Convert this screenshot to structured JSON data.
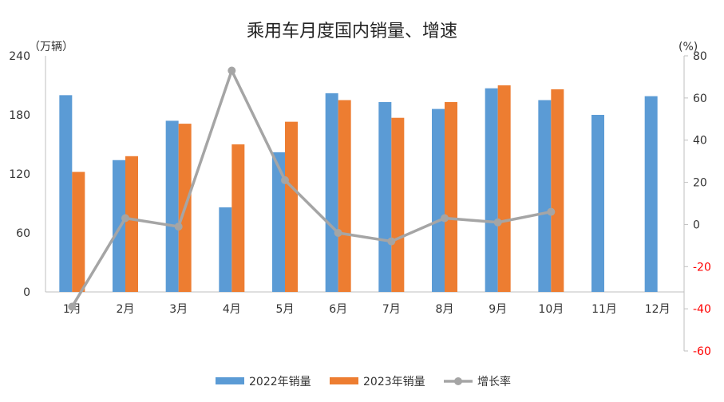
{
  "chart_data": {
    "type": "bar",
    "title": "乘用车月度国内销量、增速",
    "y_left_label": "（万辆）",
    "y_right_label": "(%)",
    "ylim_left": [
      0,
      240
    ],
    "yticks_left": [
      0,
      60,
      120,
      180,
      240
    ],
    "ylim_right": [
      -60,
      80
    ],
    "yticks_right": [
      -60,
      -40,
      -20,
      0,
      20,
      40,
      60,
      80
    ],
    "categories": [
      "1月",
      "2月",
      "3月",
      "4月",
      "5月",
      "6月",
      "7月",
      "8月",
      "9月",
      "10月",
      "11月",
      "12月"
    ],
    "series": [
      {
        "name": "2022年销量",
        "type": "bar",
        "axis": "left",
        "color": "#5B9BD5",
        "values": [
          200,
          134,
          174,
          86,
          142,
          202,
          193,
          186,
          207,
          195,
          180,
          199
        ]
      },
      {
        "name": "2023年销量",
        "type": "bar",
        "axis": "left",
        "color": "#ED7D31",
        "values": [
          122,
          138,
          171,
          150,
          173,
          195,
          177,
          193,
          210,
          206,
          null,
          null
        ]
      },
      {
        "name": "增长率",
        "type": "line",
        "axis": "right",
        "color": "#A5A5A5",
        "values": [
          -39,
          3,
          -1,
          73,
          21,
          -4,
          -8,
          3,
          1,
          6,
          null,
          null
        ]
      }
    ],
    "negative_tick_color": "#FF0000"
  }
}
